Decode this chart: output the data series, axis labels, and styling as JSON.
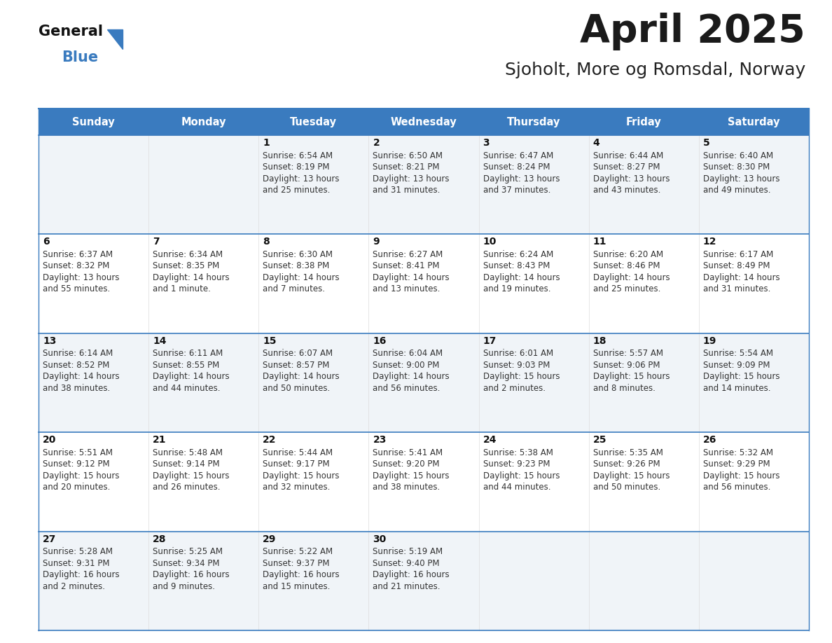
{
  "title": "April 2025",
  "subtitle": "Sjoholt, More og Romsdal, Norway",
  "days_of_week": [
    "Sunday",
    "Monday",
    "Tuesday",
    "Wednesday",
    "Thursday",
    "Friday",
    "Saturday"
  ],
  "header_bg": "#3a7bbf",
  "header_text": "#ffffff",
  "row_bg_even": "#f0f4f8",
  "row_bg_odd": "#ffffff",
  "border_color": "#3a7bbf",
  "title_color": "#1a1a1a",
  "subtitle_color": "#222222",
  "cell_text_color": "#333333",
  "day_num_color": "#111111",
  "calendar": [
    [
      null,
      null,
      {
        "day": 1,
        "sunrise": "6:54 AM",
        "sunset": "8:19 PM",
        "daylight": "13 hours",
        "daylight2": "and 25 minutes."
      },
      {
        "day": 2,
        "sunrise": "6:50 AM",
        "sunset": "8:21 PM",
        "daylight": "13 hours",
        "daylight2": "and 31 minutes."
      },
      {
        "day": 3,
        "sunrise": "6:47 AM",
        "sunset": "8:24 PM",
        "daylight": "13 hours",
        "daylight2": "and 37 minutes."
      },
      {
        "day": 4,
        "sunrise": "6:44 AM",
        "sunset": "8:27 PM",
        "daylight": "13 hours",
        "daylight2": "and 43 minutes."
      },
      {
        "day": 5,
        "sunrise": "6:40 AM",
        "sunset": "8:30 PM",
        "daylight": "13 hours",
        "daylight2": "and 49 minutes."
      }
    ],
    [
      {
        "day": 6,
        "sunrise": "6:37 AM",
        "sunset": "8:32 PM",
        "daylight": "13 hours",
        "daylight2": "and 55 minutes."
      },
      {
        "day": 7,
        "sunrise": "6:34 AM",
        "sunset": "8:35 PM",
        "daylight": "14 hours",
        "daylight2": "and 1 minute."
      },
      {
        "day": 8,
        "sunrise": "6:30 AM",
        "sunset": "8:38 PM",
        "daylight": "14 hours",
        "daylight2": "and 7 minutes."
      },
      {
        "day": 9,
        "sunrise": "6:27 AM",
        "sunset": "8:41 PM",
        "daylight": "14 hours",
        "daylight2": "and 13 minutes."
      },
      {
        "day": 10,
        "sunrise": "6:24 AM",
        "sunset": "8:43 PM",
        "daylight": "14 hours",
        "daylight2": "and 19 minutes."
      },
      {
        "day": 11,
        "sunrise": "6:20 AM",
        "sunset": "8:46 PM",
        "daylight": "14 hours",
        "daylight2": "and 25 minutes."
      },
      {
        "day": 12,
        "sunrise": "6:17 AM",
        "sunset": "8:49 PM",
        "daylight": "14 hours",
        "daylight2": "and 31 minutes."
      }
    ],
    [
      {
        "day": 13,
        "sunrise": "6:14 AM",
        "sunset": "8:52 PM",
        "daylight": "14 hours",
        "daylight2": "and 38 minutes."
      },
      {
        "day": 14,
        "sunrise": "6:11 AM",
        "sunset": "8:55 PM",
        "daylight": "14 hours",
        "daylight2": "and 44 minutes."
      },
      {
        "day": 15,
        "sunrise": "6:07 AM",
        "sunset": "8:57 PM",
        "daylight": "14 hours",
        "daylight2": "and 50 minutes."
      },
      {
        "day": 16,
        "sunrise": "6:04 AM",
        "sunset": "9:00 PM",
        "daylight": "14 hours",
        "daylight2": "and 56 minutes."
      },
      {
        "day": 17,
        "sunrise": "6:01 AM",
        "sunset": "9:03 PM",
        "daylight": "15 hours",
        "daylight2": "and 2 minutes."
      },
      {
        "day": 18,
        "sunrise": "5:57 AM",
        "sunset": "9:06 PM",
        "daylight": "15 hours",
        "daylight2": "and 8 minutes."
      },
      {
        "day": 19,
        "sunrise": "5:54 AM",
        "sunset": "9:09 PM",
        "daylight": "15 hours",
        "daylight2": "and 14 minutes."
      }
    ],
    [
      {
        "day": 20,
        "sunrise": "5:51 AM",
        "sunset": "9:12 PM",
        "daylight": "15 hours",
        "daylight2": "and 20 minutes."
      },
      {
        "day": 21,
        "sunrise": "5:48 AM",
        "sunset": "9:14 PM",
        "daylight": "15 hours",
        "daylight2": "and 26 minutes."
      },
      {
        "day": 22,
        "sunrise": "5:44 AM",
        "sunset": "9:17 PM",
        "daylight": "15 hours",
        "daylight2": "and 32 minutes."
      },
      {
        "day": 23,
        "sunrise": "5:41 AM",
        "sunset": "9:20 PM",
        "daylight": "15 hours",
        "daylight2": "and 38 minutes."
      },
      {
        "day": 24,
        "sunrise": "5:38 AM",
        "sunset": "9:23 PM",
        "daylight": "15 hours",
        "daylight2": "and 44 minutes."
      },
      {
        "day": 25,
        "sunrise": "5:35 AM",
        "sunset": "9:26 PM",
        "daylight": "15 hours",
        "daylight2": "and 50 minutes."
      },
      {
        "day": 26,
        "sunrise": "5:32 AM",
        "sunset": "9:29 PM",
        "daylight": "15 hours",
        "daylight2": "and 56 minutes."
      }
    ],
    [
      {
        "day": 27,
        "sunrise": "5:28 AM",
        "sunset": "9:31 PM",
        "daylight": "16 hours",
        "daylight2": "and 2 minutes."
      },
      {
        "day": 28,
        "sunrise": "5:25 AM",
        "sunset": "9:34 PM",
        "daylight": "16 hours",
        "daylight2": "and 9 minutes."
      },
      {
        "day": 29,
        "sunrise": "5:22 AM",
        "sunset": "9:37 PM",
        "daylight": "16 hours",
        "daylight2": "and 15 minutes."
      },
      {
        "day": 30,
        "sunrise": "5:19 AM",
        "sunset": "9:40 PM",
        "daylight": "16 hours",
        "daylight2": "and 21 minutes."
      },
      null,
      null,
      null
    ]
  ],
  "logo_text_general": "General",
  "logo_text_blue": "Blue",
  "fig_width": 11.88,
  "fig_height": 9.18,
  "fig_dpi": 100
}
